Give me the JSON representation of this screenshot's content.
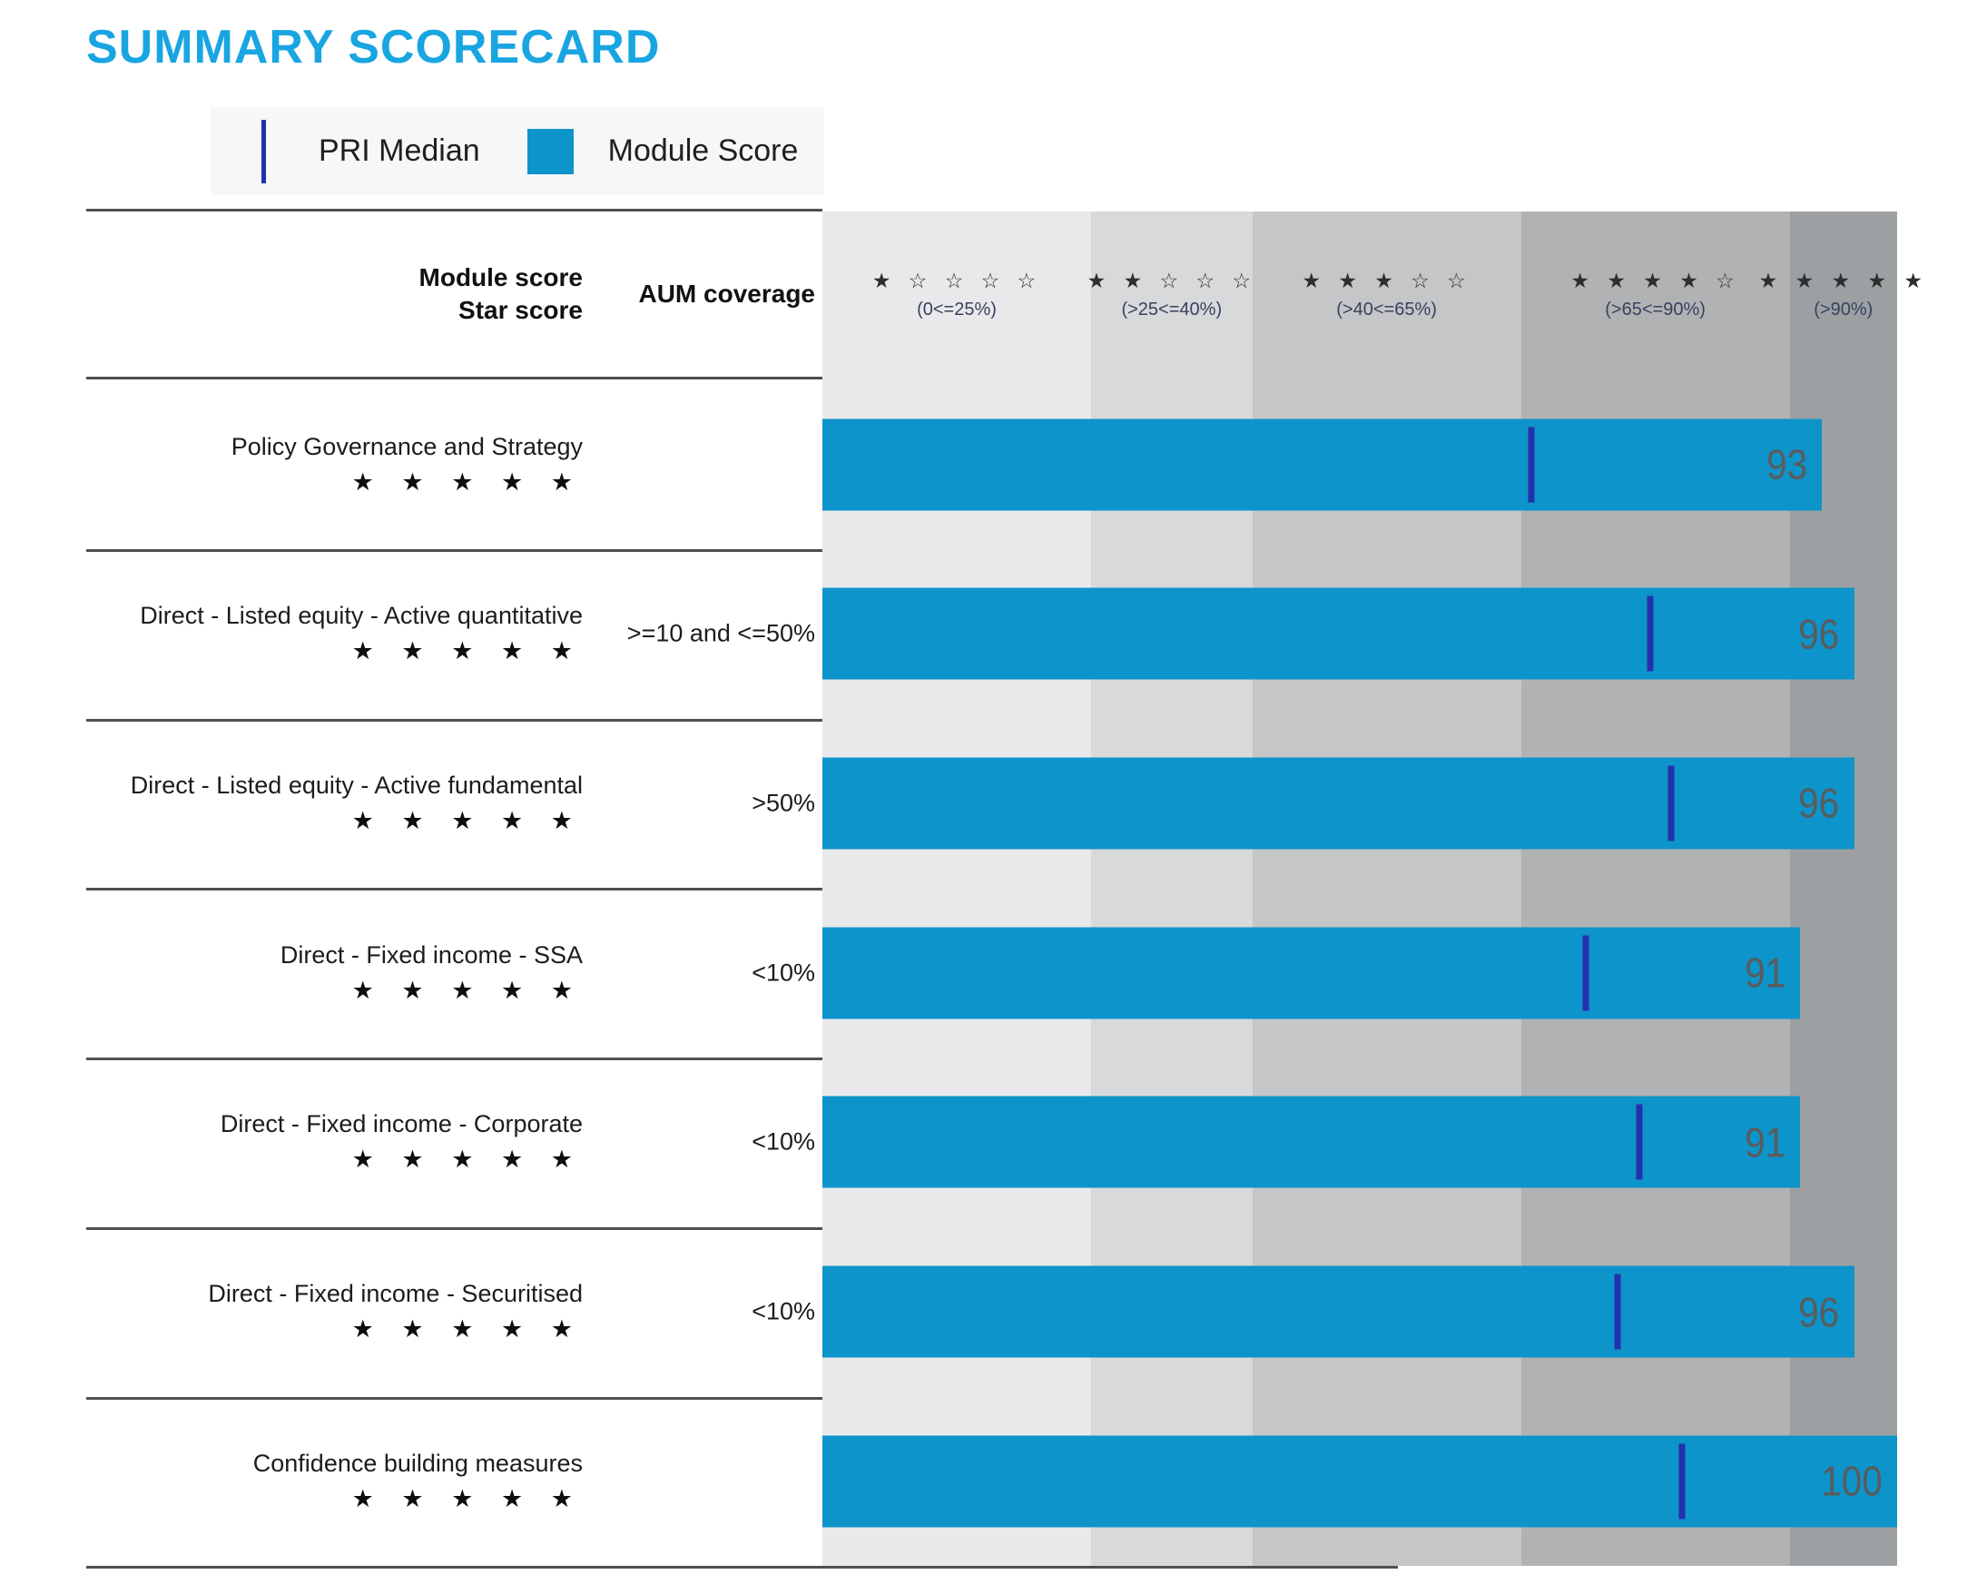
{
  "title": "SUMMARY SCORECARD",
  "legend": {
    "median_label": "PRI Median",
    "score_label": "Module Score"
  },
  "header": {
    "col1_line1": "Module score",
    "col1_line2": "Star score",
    "col2": "AUM coverage"
  },
  "bands": [
    {
      "stars": "★ ☆ ☆ ☆ ☆",
      "range": "(0<=25%)",
      "width_pct": 25
    },
    {
      "stars": "★ ★ ☆ ☆ ☆",
      "range": "(>25<=40%)",
      "width_pct": 15
    },
    {
      "stars": "★ ★ ★ ☆ ☆",
      "range": "(>40<=65%)",
      "width_pct": 25
    },
    {
      "stars": "★ ★ ★ ★ ☆",
      "range": "(>65<=90%)",
      "width_pct": 25
    },
    {
      "stars": "★ ★ ★ ★ ★",
      "range": "(>90%)",
      "width_pct": 10
    }
  ],
  "rows": [
    {
      "label": "Policy Governance and Strategy",
      "stars": "★ ★ ★ ★ ★",
      "aum": "",
      "score": 93,
      "median": 66
    },
    {
      "label": "Direct - Listed equity - Active quantitative",
      "stars": "★ ★ ★ ★ ★",
      "aum": ">=10 and <=50%",
      "score": 96,
      "median": 77
    },
    {
      "label": "Direct - Listed equity - Active fundamental",
      "stars": "★ ★ ★ ★ ★",
      "aum": ">50%",
      "score": 96,
      "median": 79
    },
    {
      "label": "Direct - Fixed income - SSA",
      "stars": "★ ★ ★ ★ ★",
      "aum": "<10%",
      "score": 91,
      "median": 71
    },
    {
      "label": "Direct - Fixed income - Corporate",
      "stars": "★ ★ ★ ★ ★",
      "aum": "<10%",
      "score": 91,
      "median": 76
    },
    {
      "label": "Direct - Fixed income - Securitised",
      "stars": "★ ★ ★ ★ ★",
      "aum": "<10%",
      "score": 96,
      "median": 74
    },
    {
      "label": "Confidence building measures",
      "stars": "★ ★ ★ ★ ★",
      "aum": "",
      "score": 100,
      "median": 80
    }
  ],
  "colors": {
    "accent": "#18a5e2",
    "bar": "#0d94ca",
    "median": "#2331ae",
    "rule": "#4f4f4f",
    "score_text": "#5a5b5d",
    "band_colors": [
      "#e9e9eb",
      "#d8d9da",
      "#c5c6c8",
      "#b1b2b4",
      "#9da0a2"
    ],
    "legend_bg": "#f7f7f7"
  },
  "chart_data": {
    "type": "bar",
    "title": "SUMMARY SCORECARD",
    "orientation": "horizontal",
    "categories": [
      "Policy Governance and Strategy",
      "Direct - Listed equity - Active quantitative",
      "Direct - Listed equity - Active fundamental",
      "Direct - Fixed income - SSA",
      "Direct - Fixed income - Corporate",
      "Direct - Fixed income - Securitised",
      "Confidence building measures"
    ],
    "series": [
      {
        "name": "Module Score",
        "values": [
          93,
          96,
          96,
          91,
          91,
          96,
          100
        ]
      },
      {
        "name": "PRI Median",
        "values": [
          66,
          77,
          79,
          71,
          76,
          74,
          80
        ]
      }
    ],
    "star_scores": [
      "5/5",
      "5/5",
      "5/5",
      "5/5",
      "5/5",
      "5/5",
      "5/5"
    ],
    "aum_coverage": [
      "",
      ">=10 and <=50%",
      ">50%",
      "<10%",
      "<10%",
      "<10%",
      ""
    ],
    "xlim": [
      0,
      100
    ],
    "legend_position": "top",
    "grid": "off",
    "background_bands": [
      {
        "label": "1 star",
        "range": "(0<=25%)",
        "from": 0,
        "to": 25
      },
      {
        "label": "2 stars",
        "range": "(>25<=40%)",
        "from": 25,
        "to": 40
      },
      {
        "label": "3 stars",
        "range": "(>40<=65%)",
        "from": 40,
        "to": 65
      },
      {
        "label": "4 stars",
        "range": "(>65<=90%)",
        "from": 65,
        "to": 90
      },
      {
        "label": "5 stars",
        "range": "(>90%)",
        "from": 90,
        "to": 100
      }
    ]
  }
}
